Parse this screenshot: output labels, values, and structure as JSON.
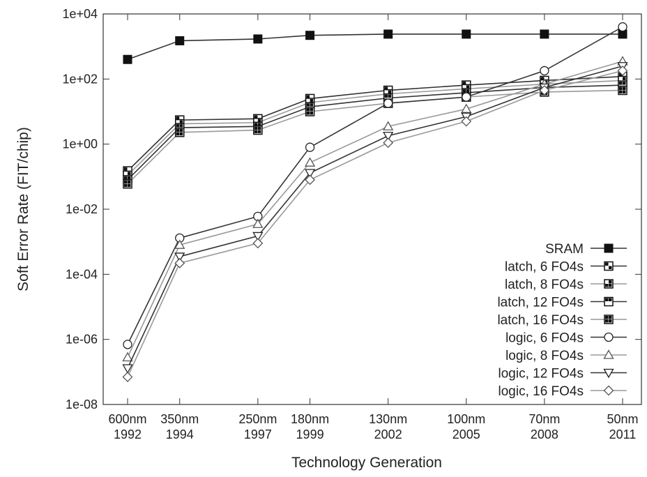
{
  "chart_data": {
    "type": "line",
    "title": "",
    "ylabel": "Soft Error Rate (FIT/chip)",
    "xlabel": "Technology Generation",
    "y_scale": "log",
    "ylim": [
      1e-08,
      10000.0
    ],
    "yticks": [
      {
        "value": 10000.0,
        "label": "1e+04"
      },
      {
        "value": 100.0,
        "label": "1e+02"
      },
      {
        "value": 1,
        "label": "1e+00"
      },
      {
        "value": 0.01,
        "label": "1e-02"
      },
      {
        "value": 0.0001,
        "label": "1e-04"
      },
      {
        "value": 1e-06,
        "label": "1e-06"
      },
      {
        "value": 1e-08,
        "label": "1e-08"
      }
    ],
    "xlim": [
      1992,
      2011
    ],
    "x": [
      1992,
      1994,
      1997,
      1999,
      2002,
      2005,
      2008,
      2011
    ],
    "xticks": [
      {
        "value": 1992,
        "node": "600nm",
        "year": "1992"
      },
      {
        "value": 1994,
        "node": "350nm",
        "year": "1994"
      },
      {
        "value": 1997,
        "node": "250nm",
        "year": "1997"
      },
      {
        "value": 1999,
        "node": "180nm",
        "year": "1999"
      },
      {
        "value": 2002,
        "node": "130nm",
        "year": "2002"
      },
      {
        "value": 2005,
        "node": "100nm",
        "year": "2005"
      },
      {
        "value": 2008,
        "node": "70nm",
        "year": "2008"
      },
      {
        "value": 2011,
        "node": "50nm",
        "year": "2011"
      }
    ],
    "grid": false,
    "legend_position": "bottom-right",
    "series": [
      {
        "name": "SRAM",
        "marker": "filled-square",
        "color": "#333333",
        "values": [
          400,
          1500,
          1700,
          2200,
          2400,
          2400,
          2400,
          2400
        ]
      },
      {
        "name": "latch,  6 FO4s",
        "marker": "square-pattern-1",
        "color": "#333333",
        "values": [
          0.15,
          5.5,
          6.0,
          25,
          45,
          65,
          90,
          120
        ]
      },
      {
        "name": "latch,  8 FO4s",
        "marker": "square-pattern-2",
        "color": "#999999",
        "values": [
          0.11,
          4.2,
          4.6,
          19,
          35,
          50,
          70,
          90
        ]
      },
      {
        "name": "latch, 12 FO4s",
        "marker": "square-pattern-3",
        "color": "#333333",
        "values": [
          0.08,
          3.2,
          3.5,
          14,
          26,
          38,
          55,
          65
        ]
      },
      {
        "name": "latch, 16 FO4s",
        "marker": "square-pattern-4",
        "color": "#999999",
        "values": [
          0.06,
          2.3,
          2.7,
          10,
          18,
          28,
          40,
          45
        ]
      },
      {
        "name": "logic,  6 FO4s",
        "marker": "circle",
        "color": "#333333",
        "values": [
          7e-07,
          0.0013,
          0.006,
          0.8,
          18,
          28,
          180,
          4000
        ]
      },
      {
        "name": "logic,  8 FO4s",
        "marker": "triangle-up",
        "color": "#999999",
        "values": [
          2.8e-07,
          0.0008,
          0.0035,
          0.27,
          3.5,
          12,
          70,
          350
        ]
      },
      {
        "name": "logic, 12 FO4s",
        "marker": "triangle-down",
        "color": "#333333",
        "values": [
          1.3e-07,
          0.00035,
          0.0015,
          0.13,
          1.8,
          7,
          55,
          250
        ]
      },
      {
        "name": "logic, 16 FO4s",
        "marker": "diamond",
        "color": "#999999",
        "values": [
          7e-08,
          0.00022,
          0.0009,
          0.08,
          1.1,
          5,
          45,
          180
        ]
      }
    ]
  }
}
